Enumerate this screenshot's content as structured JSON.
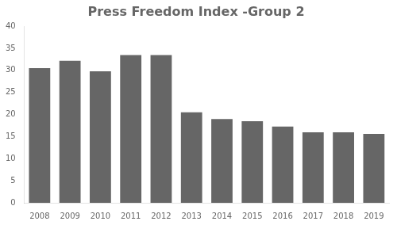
{
  "chart_data": {
    "type": "bar",
    "title": "Press Freedom Index -Group 2",
    "categories": [
      "2008",
      "2009",
      "2010",
      "2011",
      "2012",
      "2013",
      "2014",
      "2015",
      "2016",
      "2017",
      "2018",
      "2019"
    ],
    "values": [
      30.5,
      32.2,
      29.8,
      33.5,
      33.5,
      20.5,
      19.0,
      18.5,
      17.3,
      16.0,
      16.0,
      15.6
    ],
    "color": "#666666",
    "ylim": [
      0,
      40
    ],
    "yticks": [
      0,
      5,
      10,
      15,
      20,
      25,
      30,
      35,
      40
    ],
    "grid": false
  }
}
